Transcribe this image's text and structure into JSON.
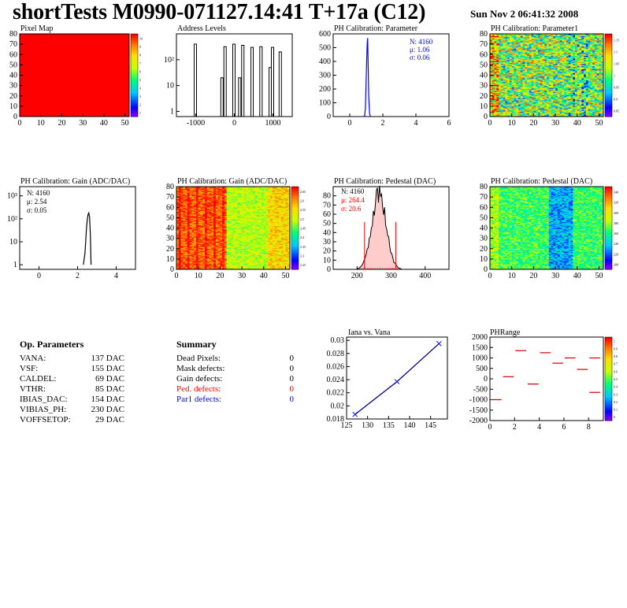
{
  "page": {
    "title": "shortTests M0990-071127.14:41 T+17a (C12)",
    "date": "Sun Nov  2 06:41:32 2008"
  },
  "op_parameters": {
    "title": "Op. Parameters",
    "rows": [
      {
        "name": "VANA:",
        "value": "137 DAC"
      },
      {
        "name": "VSF:",
        "value": "155 DAC"
      },
      {
        "name": "CALDEL:",
        "value": "69 DAC"
      },
      {
        "name": "VTHR:",
        "value": "85 DAC"
      },
      {
        "name": "IBIAS_DAC:",
        "value": "154 DAC"
      },
      {
        "name": "VIBIAS_PH:",
        "value": "230 DAC"
      },
      {
        "name": "VOFFSETOP:",
        "value": "29 DAC"
      }
    ]
  },
  "summary": {
    "title": "Summary",
    "rows": [
      {
        "name": "Dead Pixels:",
        "value": "0",
        "color": "#000000"
      },
      {
        "name": "Mask defects:",
        "value": "0",
        "color": "#000000"
      },
      {
        "name": "Gain defects:",
        "value": "0",
        "color": "#000000"
      },
      {
        "name": "Ped. defects:",
        "value": "0",
        "color": "#ff0000"
      },
      {
        "name": "Par1 defects:",
        "value": "0",
        "color": "#0000ff"
      }
    ]
  },
  "chart_data": [
    {
      "id": "pixel_map",
      "type": "heatmap",
      "title": "Pixel Map",
      "xlim": [
        0,
        52
      ],
      "ylim": [
        0,
        80
      ],
      "xticks": [
        "0",
        "10",
        "20",
        "30",
        "40",
        "50"
      ],
      "yticks": [
        "0",
        "10",
        "20",
        "30",
        "40",
        "50",
        "60",
        "70",
        "80"
      ],
      "zlim": [
        0,
        10
      ],
      "zticks": [
        "10",
        "9",
        "8",
        "7",
        "6",
        "5",
        "4",
        "3",
        "2",
        "1"
      ],
      "fill_value": 10,
      "fill_color": "#ff0000"
    },
    {
      "id": "address_levels",
      "type": "bar",
      "title": "Address Levels",
      "log_y": true,
      "xlim": [
        -1500,
        1500
      ],
      "xticks": [
        "-1000",
        "0",
        "1000"
      ],
      "yticks": [
        "1",
        "10",
        "10²"
      ],
      "peaks": [
        {
          "x": -1000,
          "y": 400
        },
        {
          "x": -310,
          "y": 20
        },
        {
          "x": -230,
          "y": 320
        },
        {
          "x": 0,
          "y": 400
        },
        {
          "x": 150,
          "y": 20
        },
        {
          "x": 230,
          "y": 360
        },
        {
          "x": 470,
          "y": 300
        },
        {
          "x": 700,
          "y": 320
        },
        {
          "x": 940,
          "y": 50
        },
        {
          "x": 1000,
          "y": 300
        },
        {
          "x": 1200,
          "y": 200
        }
      ]
    },
    {
      "id": "ph_cal_parameter",
      "type": "line",
      "title": "PH Calibration: Parameter",
      "xlim": [
        -1,
        6
      ],
      "ylim": [
        0,
        600
      ],
      "xticks": [
        "0",
        "2",
        "4",
        "6"
      ],
      "yticks": [
        "0",
        "100",
        "200",
        "300",
        "400",
        "500",
        "600"
      ],
      "stats": {
        "N": "N: 4160",
        "mu": "μ: 1.06",
        "sigma": "σ: 0.06"
      },
      "points": [
        [
          0.85,
          0
        ],
        [
          0.9,
          5
        ],
        [
          0.95,
          60
        ],
        [
          1.0,
          300
        ],
        [
          1.05,
          520
        ],
        [
          1.08,
          570
        ],
        [
          1.1,
          470
        ],
        [
          1.15,
          150
        ],
        [
          1.2,
          20
        ],
        [
          1.25,
          0
        ]
      ]
    },
    {
      "id": "ph_cal_parameter1",
      "type": "heatmap",
      "title": "PH Calibration: Parameter1",
      "xlim": [
        0,
        52
      ],
      "ylim": [
        0,
        80
      ],
      "xticks": [
        "0",
        "10",
        "20",
        "30",
        "40",
        "50"
      ],
      "yticks": [
        "0",
        "10",
        "20",
        "30",
        "40",
        "50",
        "60",
        "70",
        "80"
      ],
      "zticks": [
        "1.15",
        "1.1",
        "1.05",
        "1",
        "0.95",
        "0.9",
        "0.85"
      ]
    },
    {
      "id": "ph_cal_gain",
      "type": "line",
      "title": "PH Calibration: Gain (ADC/DAC)",
      "log_y": true,
      "xlim": [
        -1,
        5
      ],
      "xticks": [
        "0",
        "2",
        "4"
      ],
      "yticks": [
        "1",
        "10",
        "10²",
        "10³"
      ],
      "stats": {
        "N": "N: 4160",
        "mu": "μ: 2.54",
        "sigma": "σ: 0.05"
      },
      "points": [
        [
          2.3,
          1
        ],
        [
          2.38,
          3
        ],
        [
          2.42,
          10
        ],
        [
          2.46,
          40
        ],
        [
          2.5,
          90
        ],
        [
          2.54,
          150
        ],
        [
          2.58,
          180
        ],
        [
          2.62,
          120
        ],
        [
          2.66,
          20
        ],
        [
          2.7,
          1
        ]
      ]
    },
    {
      "id": "ph_cal_gain_map",
      "type": "heatmap",
      "title": "PH Calibration: Gain (ADC/DAC)",
      "xlim": [
        0,
        52
      ],
      "ylim": [
        0,
        80
      ],
      "xticks": [
        "0",
        "10",
        "20",
        "30",
        "40",
        "50"
      ],
      "yticks": [
        "0",
        "10",
        "20",
        "30",
        "40",
        "50",
        "60",
        "70",
        "80"
      ],
      "zticks": [
        "2.65",
        "2.6",
        "2.55",
        "2.5",
        "2.45",
        "2.4",
        "2.35",
        "2.3",
        "2.25"
      ]
    },
    {
      "id": "ph_cal_pedestal",
      "type": "bar",
      "title": "PH Calibration: Pedestal (DAC)",
      "xlim": [
        130,
        470
      ],
      "ylim": [
        0,
        90
      ],
      "xticks": [
        "200",
        "300",
        "400"
      ],
      "yticks": [
        "0",
        "10",
        "20",
        "30",
        "40",
        "50",
        "60",
        "70",
        "80"
      ],
      "stats": {
        "N": "N: 4160",
        "mu": "μ: 264.4",
        "sigma": "σ: 20.6"
      },
      "mean": 264.4,
      "sigma": 20.6,
      "peak": 82,
      "cut_low": 222,
      "cut_high": 314
    },
    {
      "id": "ph_cal_pedestal_map",
      "type": "heatmap",
      "title": "PH Calibration: Pedestal (DAC)",
      "xlim": [
        0,
        52
      ],
      "ylim": [
        0,
        80
      ],
      "xticks": [
        "0",
        "10",
        "20",
        "30",
        "40",
        "50"
      ],
      "yticks": [
        "0",
        "10",
        "20",
        "30",
        "40",
        "50",
        "60",
        "70",
        "80"
      ],
      "zticks": [
        "340",
        "320",
        "300",
        "280",
        "260",
        "240",
        "220",
        "200"
      ]
    },
    {
      "id": "iana_vs_vana",
      "type": "line",
      "title": "Iana vs. Vana",
      "xlim": [
        125,
        149
      ],
      "ylim": [
        0.018,
        0.0305
      ],
      "xticks": [
        "125",
        "130",
        "135",
        "140",
        "145"
      ],
      "yticks": [
        "0.018",
        "0.02",
        "0.022",
        "0.024",
        "0.026",
        "0.028",
        "0.03"
      ],
      "points": [
        [
          127,
          0.0187
        ],
        [
          137,
          0.0237
        ],
        [
          147,
          0.0295
        ]
      ]
    },
    {
      "id": "ph_range",
      "type": "scatter",
      "title": "PHRange",
      "xlim": [
        0,
        9.2
      ],
      "ylim": [
        -2000,
        2000
      ],
      "xticks": [
        "0",
        "2",
        "4",
        "6",
        "8"
      ],
      "yticks": [
        "2000",
        "1500",
        "1000",
        "500",
        "0",
        "-500",
        "-1000",
        "-1500",
        "-2000"
      ],
      "zticks": [
        "1",
        "0.9",
        "0.8",
        "0.7",
        "0.6",
        "0.5",
        "0.4",
        "0.3",
        "0.2",
        "0.1",
        "0"
      ],
      "segments": [
        {
          "x": 0.5,
          "y": -1000
        },
        {
          "x": 1.5,
          "y": 100
        },
        {
          "x": 2.5,
          "y": 1350
        },
        {
          "x": 3.5,
          "y": -250
        },
        {
          "x": 4.5,
          "y": 1250
        },
        {
          "x": 5.5,
          "y": 750
        },
        {
          "x": 6.5,
          "y": 1000
        },
        {
          "x": 7.5,
          "y": 450
        },
        {
          "x": 8.5,
          "y": -650
        },
        {
          "x": 8.5,
          "y": 1000
        }
      ]
    }
  ]
}
